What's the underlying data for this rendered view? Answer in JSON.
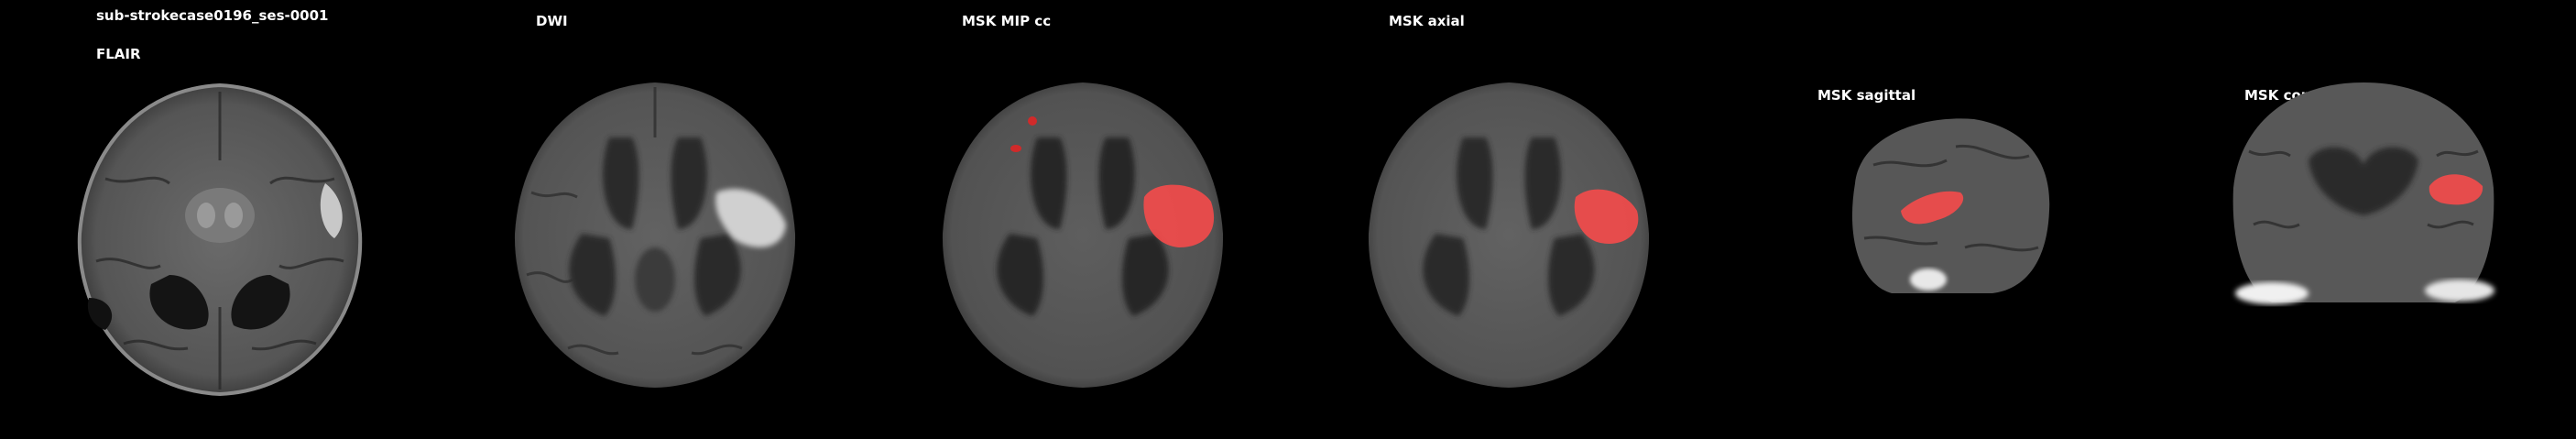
{
  "header": {
    "subject_id": "sub-strokecase0196_ses-0001"
  },
  "panels": [
    {
      "key": "flair",
      "label": "FLAIR"
    },
    {
      "key": "dwi",
      "label": "DWI"
    },
    {
      "key": "mip",
      "label": "MSK MIP cc"
    },
    {
      "key": "axial",
      "label": "MSK axial"
    },
    {
      "key": "sagittal",
      "label": "MSK sagittal"
    },
    {
      "key": "coronal",
      "label": "MSK coronal"
    }
  ],
  "colors": {
    "background": "#000000",
    "text": "#ffffff",
    "lesion_mask": "#ff4a4a"
  }
}
